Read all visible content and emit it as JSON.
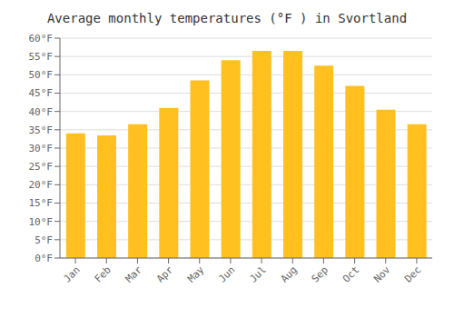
{
  "chart_data": {
    "type": "bar",
    "title": "Average monthly temperatures (°F ) in Svortland",
    "categories": [
      "Jan",
      "Feb",
      "Mar",
      "Apr",
      "May",
      "Jun",
      "Jul",
      "Aug",
      "Sep",
      "Oct",
      "Nov",
      "Dec"
    ],
    "values": [
      34,
      33.5,
      36.5,
      41,
      48.5,
      54,
      56.5,
      56.5,
      52.5,
      47,
      40.5,
      36.5
    ],
    "color": "#FFC020",
    "ylim": [
      0,
      60
    ],
    "yticks": [
      {
        "value": 0,
        "label": "0°F"
      },
      {
        "value": 5,
        "label": "5°F"
      },
      {
        "value": 10,
        "label": "10°F"
      },
      {
        "value": 15,
        "label": "15°F"
      },
      {
        "value": 20,
        "label": "20°F"
      },
      {
        "value": 25,
        "label": "25°F"
      },
      {
        "value": 30,
        "label": "30°F"
      },
      {
        "value": 35,
        "label": "35°F"
      },
      {
        "value": 40,
        "label": "40°F"
      },
      {
        "value": 45,
        "label": "45°F"
      },
      {
        "value": 50,
        "label": "50°F"
      },
      {
        "value": 55,
        "label": "55°F"
      },
      {
        "value": 60,
        "label": "60°F"
      }
    ],
    "grid": true
  }
}
